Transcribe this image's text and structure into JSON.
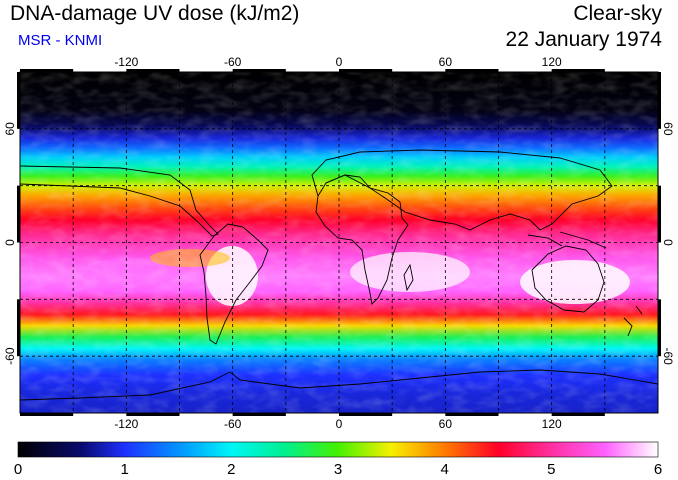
{
  "header": {
    "title": "DNA-damage UV dose (kJ/m2)",
    "source": "MSR - KNMI",
    "condition": "Clear-sky",
    "date": "22 January 1974"
  },
  "colors": {
    "source_text": "#0000ee",
    "grid_line": "#000000",
    "coastline": "#000000"
  },
  "map": {
    "projection": "equirectangular",
    "lon_range": [
      -180,
      180
    ],
    "lat_range": [
      -90,
      90
    ],
    "lon_ticks": [
      "-120",
      "-60",
      "0",
      "60",
      "120"
    ],
    "lon_tick_values": [
      -120,
      -60,
      0,
      60,
      120
    ],
    "lat_ticks": [
      "60",
      "0",
      "-60"
    ],
    "lat_tick_values": [
      60,
      0,
      -60
    ],
    "grid": "dashed"
  },
  "colorbar": {
    "labels": [
      "0",
      "1",
      "2",
      "3",
      "4",
      "5",
      "6"
    ],
    "min": 0,
    "max": 6,
    "stops": [
      {
        "value": 0.0,
        "color": "#000000"
      },
      {
        "value": 0.6,
        "color": "#0a0a70"
      },
      {
        "value": 1.0,
        "color": "#1e30ff"
      },
      {
        "value": 1.6,
        "color": "#00a6ff"
      },
      {
        "value": 2.0,
        "color": "#00f6f6"
      },
      {
        "value": 2.5,
        "color": "#00f090"
      },
      {
        "value": 3.0,
        "color": "#44f000"
      },
      {
        "value": 3.5,
        "color": "#f6f000"
      },
      {
        "value": 4.0,
        "color": "#ff7a00"
      },
      {
        "value": 4.5,
        "color": "#ff0028"
      },
      {
        "value": 5.0,
        "color": "#ff30a0"
      },
      {
        "value": 5.5,
        "color": "#ff60ff"
      },
      {
        "value": 6.0,
        "color": "#ffffff"
      }
    ]
  }
}
